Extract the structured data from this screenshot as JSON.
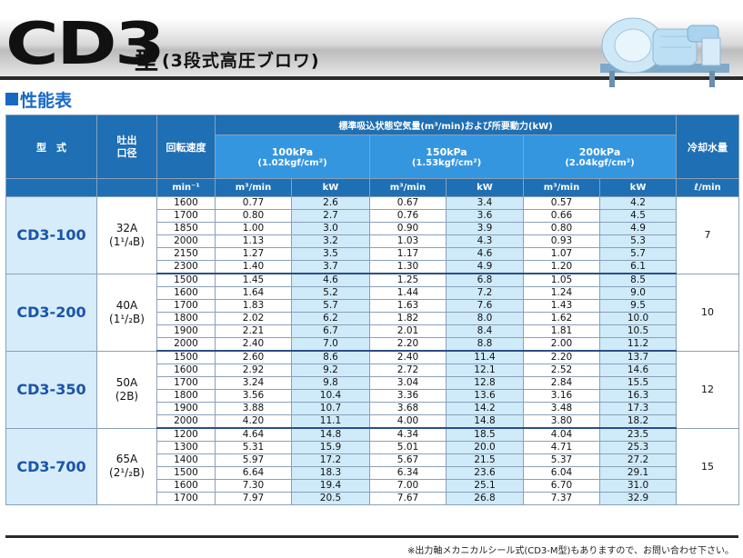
{
  "header": {
    "model_big": "CD3",
    "model_suffix": "型",
    "description": "(3段式高圧ブロワ)"
  },
  "section": {
    "title": "性能表"
  },
  "table": {
    "head": {
      "model": "型　式",
      "port": "吐出\n口径",
      "speed": "回転速度",
      "air_group": "標準吸込状態空気量(m³/min)および所要動力(kW)",
      "cooling": "冷却水量",
      "pressures": [
        {
          "label": "100kPa",
          "sub": "(1.02kgf/cm²)"
        },
        {
          "label": "150kPa",
          "sub": "(1.53kgf/cm²)"
        },
        {
          "label": "200kPa",
          "sub": "(2.04kgf/cm²)"
        }
      ],
      "unit_speed": "min⁻¹",
      "unit_flow": "m³/min",
      "unit_kw": "kW",
      "unit_water": "ℓ/min"
    },
    "groups": [
      {
        "model": "CD3-100",
        "port": "32A",
        "port_sub": "(1¹/₄B)",
        "water": "7",
        "rows": [
          [
            "1600",
            "0.77",
            "2.6",
            "0.67",
            "3.4",
            "0.57",
            "4.2"
          ],
          [
            "1700",
            "0.80",
            "2.7",
            "0.76",
            "3.6",
            "0.66",
            "4.5"
          ],
          [
            "1850",
            "1.00",
            "3.0",
            "0.90",
            "3.9",
            "0.80",
            "4.9"
          ],
          [
            "2000",
            "1.13",
            "3.2",
            "1.03",
            "4.3",
            "0.93",
            "5.3"
          ],
          [
            "2150",
            "1.27",
            "3.5",
            "1.17",
            "4.6",
            "1.07",
            "5.7"
          ],
          [
            "2300",
            "1.40",
            "3.7",
            "1.30",
            "4.9",
            "1.20",
            "6.1"
          ]
        ]
      },
      {
        "model": "CD3-200",
        "port": "40A",
        "port_sub": "(1¹/₂B)",
        "water": "10",
        "rows": [
          [
            "1500",
            "1.45",
            "4.6",
            "1.25",
            "6.8",
            "1.05",
            "8.5"
          ],
          [
            "1600",
            "1.64",
            "5.2",
            "1.44",
            "7.2",
            "1.24",
            "9.0"
          ],
          [
            "1700",
            "1.83",
            "5.7",
            "1.63",
            "7.6",
            "1.43",
            "9.5"
          ],
          [
            "1800",
            "2.02",
            "6.2",
            "1.82",
            "8.0",
            "1.62",
            "10.0"
          ],
          [
            "1900",
            "2.21",
            "6.7",
            "2.01",
            "8.4",
            "1.81",
            "10.5"
          ],
          [
            "2000",
            "2.40",
            "7.0",
            "2.20",
            "8.8",
            "2.00",
            "11.2"
          ]
        ]
      },
      {
        "model": "CD3-350",
        "port": "50A",
        "port_sub": "(2B)",
        "water": "12",
        "rows": [
          [
            "1500",
            "2.60",
            "8.6",
            "2.40",
            "11.4",
            "2.20",
            "13.7"
          ],
          [
            "1600",
            "2.92",
            "9.2",
            "2.72",
            "12.1",
            "2.52",
            "14.6"
          ],
          [
            "1700",
            "3.24",
            "9.8",
            "3.04",
            "12.8",
            "2.84",
            "15.5"
          ],
          [
            "1800",
            "3.56",
            "10.4",
            "3.36",
            "13.6",
            "3.16",
            "16.3"
          ],
          [
            "1900",
            "3.88",
            "10.7",
            "3.68",
            "14.2",
            "3.48",
            "17.3"
          ],
          [
            "2000",
            "4.20",
            "11.1",
            "4.00",
            "14.8",
            "3.80",
            "18.2"
          ]
        ]
      },
      {
        "model": "CD3-700",
        "port": "65A",
        "port_sub": "(2¹/₂B)",
        "water": "15",
        "rows": [
          [
            "1200",
            "4.64",
            "14.8",
            "4.34",
            "18.5",
            "4.04",
            "23.5"
          ],
          [
            "1300",
            "5.31",
            "15.9",
            "5.01",
            "20.0",
            "4.71",
            "25.3"
          ],
          [
            "1400",
            "5.97",
            "17.2",
            "5.67",
            "21.5",
            "5.37",
            "27.2"
          ],
          [
            "1500",
            "6.64",
            "18.3",
            "6.34",
            "23.6",
            "6.04",
            "29.1"
          ],
          [
            "1600",
            "7.30",
            "19.4",
            "7.00",
            "25.1",
            "6.70",
            "31.0"
          ],
          [
            "1700",
            "7.97",
            "20.5",
            "7.67",
            "26.8",
            "7.37",
            "32.9"
          ]
        ]
      }
    ]
  },
  "footnote": "※出力軸メカニカルシール式(CD3-M型)もありますので、お問い合わせ下さい。",
  "colors": {
    "header_blue": "#1f6fb4",
    "sub_blue": "#3596e0",
    "kw_cell": "#cfeaf9",
    "model_text": "#1a55a8"
  }
}
